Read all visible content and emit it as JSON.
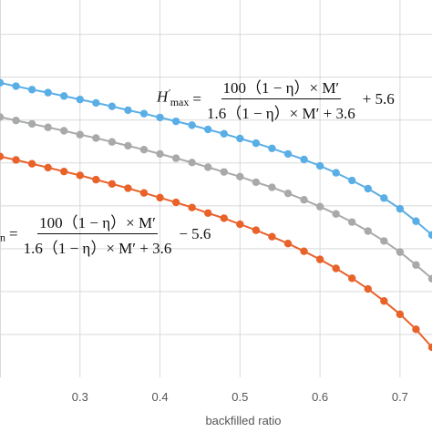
{
  "chart_data": {
    "type": "line",
    "xlabel": "backfilled ratio",
    "ylabel": "",
    "title": "",
    "xlim": [
      0.2,
      0.74
    ],
    "ylim": [
      0,
      8.8
    ],
    "xticks": [
      "0.3",
      "0.4",
      "0.5",
      "0.6",
      "0.7"
    ],
    "grid": "vertical",
    "series": [
      {
        "color": "#5aaee6",
        "x": [
          0.2,
          0.22,
          0.24,
          0.26,
          0.28,
          0.3,
          0.32,
          0.34,
          0.36,
          0.38,
          0.4,
          0.42,
          0.44,
          0.46,
          0.48,
          0.5,
          0.52,
          0.54,
          0.56,
          0.58,
          0.6,
          0.62,
          0.64,
          0.66,
          0.68,
          0.7,
          0.72,
          0.74
        ],
        "values": [
          6.87,
          6.79,
          6.71,
          6.64,
          6.56,
          6.48,
          6.4,
          6.32,
          6.23,
          6.15,
          6.06,
          5.97,
          5.88,
          5.78,
          5.68,
          5.57,
          5.46,
          5.34,
          5.21,
          5.08,
          4.93,
          4.77,
          4.59,
          4.4,
          4.18,
          3.93,
          3.64,
          3.32
        ]
      },
      {
        "color": "#a8aaa9",
        "x": [
          0.2,
          0.22,
          0.24,
          0.26,
          0.28,
          0.3,
          0.32,
          0.34,
          0.36,
          0.38,
          0.4,
          0.42,
          0.44,
          0.46,
          0.48,
          0.5,
          0.52,
          0.54,
          0.56,
          0.58,
          0.6,
          0.62,
          0.64,
          0.66,
          0.68,
          0.7,
          0.72,
          0.74
        ],
        "values": [
          6.07,
          5.99,
          5.91,
          5.83,
          5.75,
          5.66,
          5.58,
          5.49,
          5.4,
          5.31,
          5.21,
          5.11,
          5.01,
          4.9,
          4.79,
          4.68,
          4.55,
          4.43,
          4.29,
          4.14,
          3.98,
          3.81,
          3.62,
          3.41,
          3.18,
          2.92,
          2.62,
          2.3
        ]
      },
      {
        "color": "#e8622a",
        "x": [
          0.2,
          0.22,
          0.24,
          0.26,
          0.28,
          0.3,
          0.32,
          0.34,
          0.36,
          0.38,
          0.4,
          0.42,
          0.44,
          0.46,
          0.48,
          0.5,
          0.52,
          0.54,
          0.56,
          0.58,
          0.6,
          0.62,
          0.64,
          0.66,
          0.68,
          0.7,
          0.72,
          0.74
        ],
        "values": [
          5.15,
          5.07,
          4.98,
          4.89,
          4.8,
          4.71,
          4.61,
          4.51,
          4.41,
          4.3,
          4.19,
          4.08,
          3.96,
          3.83,
          3.71,
          3.57,
          3.43,
          3.28,
          3.12,
          2.94,
          2.75,
          2.54,
          2.31,
          2.06,
          1.78,
          1.47,
          1.12,
          0.7
        ]
      }
    ],
    "annotations": {
      "upper": {
        "lhs_base": "H",
        "lhs_prime": "′",
        "lhs_sub": "max",
        "equals": "=",
        "numerator": "100（1 − η）× M′",
        "denominator": "1.6（1 − η）× M′ + 3.6",
        "tail": "+ 5.6"
      },
      "lower": {
        "lhs_sub": "n",
        "equals": "=",
        "numerator": "100（1 − η）× M′",
        "denominator": "1.6（1 − η）× M′ + 3.6",
        "tail": "− 5.6"
      }
    }
  }
}
